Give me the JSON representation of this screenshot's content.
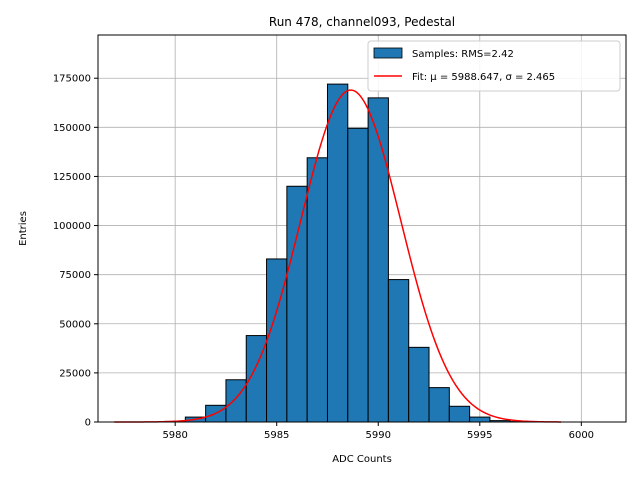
{
  "chart_data": {
    "type": "bar",
    "title": "Run 478, channel093, Pedestal",
    "xlabel": "ADC Counts",
    "ylabel": "Entries",
    "xlim": [
      5976.2,
      6002.2
    ],
    "ylim": [
      0,
      197000
    ],
    "x_ticks": [
      5980,
      5985,
      5990,
      5995,
      6000
    ],
    "y_ticks": [
      0,
      25000,
      50000,
      75000,
      100000,
      125000,
      150000,
      175000
    ],
    "grid": true,
    "legend_position": "upper right",
    "bin_width": 1,
    "bars": {
      "name": "Samples: RMS=2.42",
      "color": "#1f77b4",
      "bin_centers": [
        5980,
        5981,
        5982,
        5983,
        5984,
        5985,
        5986,
        5987,
        5988,
        5989,
        5990,
        5991,
        5992,
        5993,
        5994,
        5995,
        5996,
        5997
      ],
      "values": [
        300,
        2500,
        8500,
        21500,
        44000,
        83000,
        120000,
        134500,
        172000,
        149500,
        165000,
        72500,
        38000,
        17500,
        8000,
        2500,
        700,
        200
      ]
    },
    "fit": {
      "name": "Fit: μ = 5988.647, σ = 2.465",
      "color": "#ff0000",
      "mu": 5988.647,
      "sigma": 2.465,
      "amplitude": 169000,
      "x_range": [
        5977,
        5999
      ]
    }
  }
}
